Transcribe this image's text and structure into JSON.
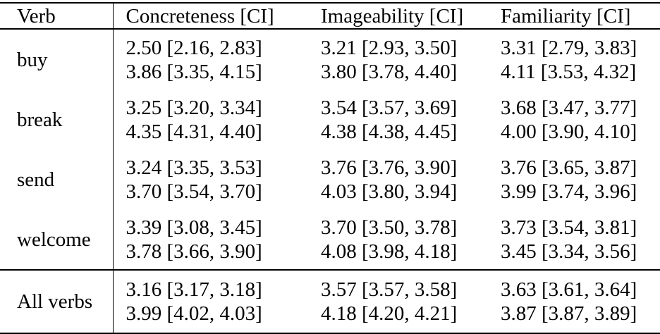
{
  "table": {
    "columns": {
      "verb": "Verb",
      "concreteness": "Concreteness [CI]",
      "imageability": "Imageability [CI]",
      "familiarity": "Familiarity [CI]"
    },
    "rows": [
      {
        "verb": "buy",
        "concreteness": [
          "2.50 [2.16, 2.83]",
          "3.86 [3.35, 4.15]"
        ],
        "imageability": [
          "3.21 [2.93, 3.50]",
          "3.80 [3.78, 4.40]"
        ],
        "familiarity": [
          "3.31 [2.79, 3.83]",
          "4.11 [3.53, 4.32]"
        ]
      },
      {
        "verb": "break",
        "concreteness": [
          "3.25 [3.20, 3.34]",
          "4.35 [4.31, 4.40]"
        ],
        "imageability": [
          "3.54 [3.57, 3.69]",
          "4.38 [4.38, 4.45]"
        ],
        "familiarity": [
          "3.68 [3.47, 3.77]",
          "4.00 [3.90, 4.10]"
        ]
      },
      {
        "verb": "send",
        "concreteness": [
          "3.24 [3.35, 3.53]",
          "3.70 [3.54, 3.70]"
        ],
        "imageability": [
          "3.76 [3.76, 3.90]",
          "4.03 [3.80, 3.94]"
        ],
        "familiarity": [
          "3.76 [3.65, 3.87]",
          "3.99 [3.74, 3.96]"
        ]
      },
      {
        "verb": "welcome",
        "concreteness": [
          "3.39 [3.08, 3.45]",
          "3.78 [3.66, 3.90]"
        ],
        "imageability": [
          "3.70 [3.50, 3.78]",
          "4.08 [3.98, 4.18]"
        ],
        "familiarity": [
          "3.73 [3.54, 3.81]",
          "3.45 [3.34, 3.56]"
        ]
      }
    ],
    "summary_row": {
      "verb": "All verbs",
      "concreteness": [
        "3.16 [3.17, 3.18]",
        "3.99 [4.02, 4.03]"
      ],
      "imageability": [
        "3.57 [3.57, 3.58]",
        "4.18 [4.20, 4.21]"
      ],
      "familiarity": [
        "3.63 [3.61, 3.64]",
        "3.87 [3.87, 3.89]"
      ]
    }
  },
  "colors": {
    "text": "#000000",
    "rule": "#000000",
    "background": "#ffffff"
  }
}
